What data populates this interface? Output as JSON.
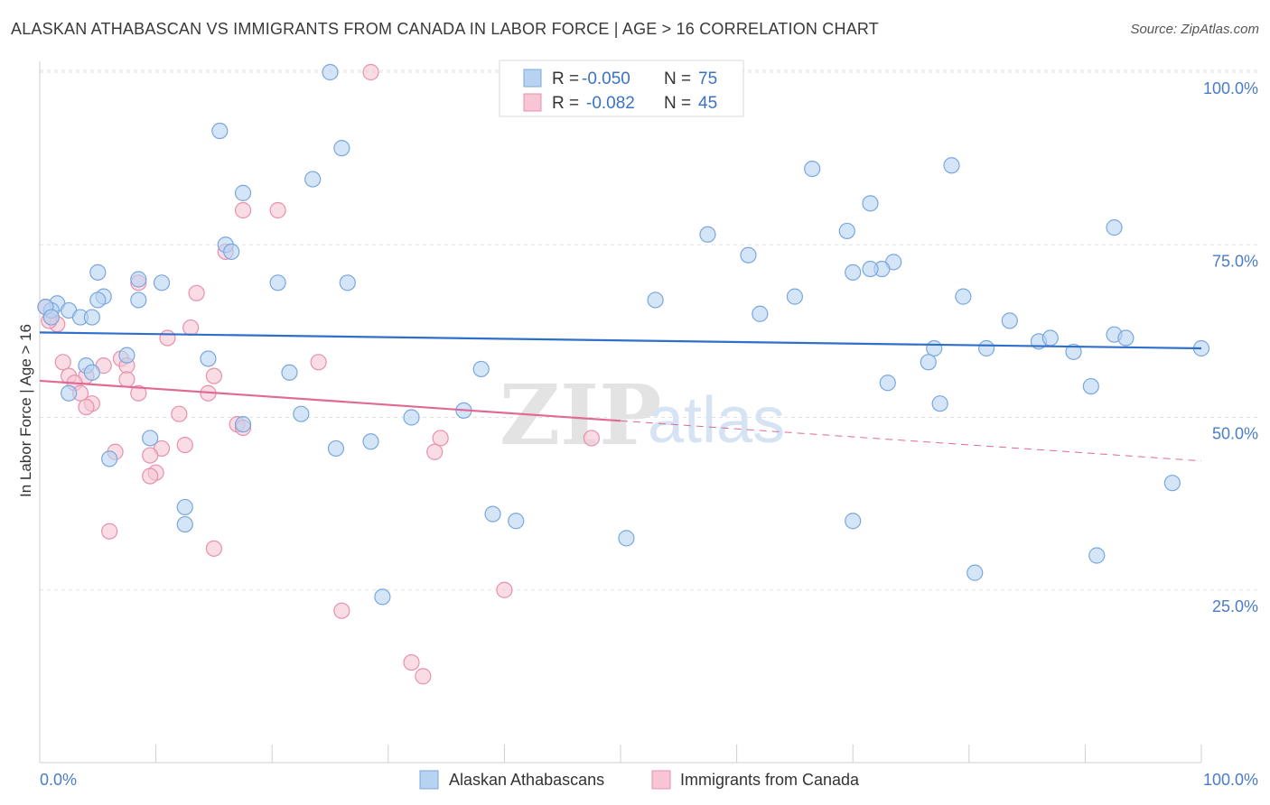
{
  "title": "ALASKAN ATHABASCAN VS IMMIGRANTS FROM CANADA IN LABOR FORCE | AGE > 16 CORRELATION CHART",
  "source": "Source: ZipAtlas.com",
  "watermark": {
    "zip": "ZIP",
    "atlas": "atlas"
  },
  "colors": {
    "blue_fill": "#b8d3f2",
    "blue_stroke": "#7aa7dd",
    "blue_line": "#2f6fcc",
    "pink_fill": "#f7c5d4",
    "pink_stroke": "#e791ac",
    "pink_line": "#e06a93",
    "grid": "#e2e2e2",
    "axis_label": "#4a7cc7"
  },
  "legend": {
    "rows": [
      {
        "r_label": "R =",
        "r_value": "-0.050",
        "n_label": "N =",
        "n_value": "75"
      },
      {
        "r_label": "R =",
        "r_value": "-0.082",
        "n_label": "N =",
        "n_value": "45"
      }
    ]
  },
  "chart_data": {
    "type": "scatter",
    "title": "ALASKAN ATHABASCAN VS IMMIGRANTS FROM CANADA IN LABOR FORCE | AGE > 16 CORRELATION CHART",
    "xlabel": "",
    "ylabel": "In Labor Force | Age > 16",
    "xlim": [
      0,
      100
    ],
    "ylim": [
      0,
      103
    ],
    "x_tick_labels": [
      "0.0%",
      "100.0%"
    ],
    "y_ticks": [
      25,
      50,
      75,
      100
    ],
    "y_tick_labels": [
      "25.0%",
      "50.0%",
      "75.0%",
      "100.0%"
    ],
    "grid": true,
    "legend_position": "top-center",
    "series": [
      {
        "name": "Alaskan Athabascans",
        "color": "#b8d3f2",
        "points": [
          [
            25.0,
            100.0
          ],
          [
            15.5,
            91.5
          ],
          [
            26.0,
            89.0
          ],
          [
            23.5,
            84.5
          ],
          [
            17.5,
            82.5
          ],
          [
            66.5,
            86.0
          ],
          [
            78.5,
            86.5
          ],
          [
            71.5,
            81.0
          ],
          [
            92.5,
            77.5
          ],
          [
            57.5,
            76.5
          ],
          [
            69.5,
            77.0
          ],
          [
            16.0,
            75.0
          ],
          [
            16.5,
            74.0
          ],
          [
            61.0,
            73.5
          ],
          [
            73.5,
            72.5
          ],
          [
            72.5,
            71.5
          ],
          [
            71.5,
            71.5
          ],
          [
            70.0,
            71.0
          ],
          [
            5.0,
            71.0
          ],
          [
            8.5,
            70.0
          ],
          [
            10.5,
            69.5
          ],
          [
            20.5,
            69.5
          ],
          [
            26.5,
            69.5
          ],
          [
            5.5,
            67.5
          ],
          [
            5.0,
            67.0
          ],
          [
            8.5,
            67.0
          ],
          [
            53.0,
            67.0
          ],
          [
            65.0,
            67.5
          ],
          [
            79.5,
            67.5
          ],
          [
            1.5,
            66.5
          ],
          [
            2.5,
            65.5
          ],
          [
            1.0,
            65.5
          ],
          [
            3.5,
            64.5
          ],
          [
            4.5,
            64.5
          ],
          [
            62.0,
            65.0
          ],
          [
            83.5,
            64.0
          ],
          [
            86.0,
            61.0
          ],
          [
            87.0,
            61.5
          ],
          [
            92.5,
            62.0
          ],
          [
            93.5,
            61.5
          ],
          [
            77.0,
            60.0
          ],
          [
            81.5,
            60.0
          ],
          [
            89.0,
            59.5
          ],
          [
            100.0,
            60.0
          ],
          [
            7.5,
            59.0
          ],
          [
            14.5,
            58.5
          ],
          [
            76.5,
            58.0
          ],
          [
            4.0,
            57.5
          ],
          [
            4.5,
            56.5
          ],
          [
            21.5,
            56.5
          ],
          [
            38.0,
            57.0
          ],
          [
            73.0,
            55.0
          ],
          [
            90.5,
            54.5
          ],
          [
            2.5,
            53.5
          ],
          [
            77.5,
            52.0
          ],
          [
            22.5,
            50.5
          ],
          [
            36.5,
            51.0
          ],
          [
            32.0,
            50.0
          ],
          [
            17.5,
            49.0
          ],
          [
            9.5,
            47.0
          ],
          [
            28.5,
            46.5
          ],
          [
            25.5,
            45.5
          ],
          [
            6.0,
            44.0
          ],
          [
            12.5,
            37.0
          ],
          [
            39.0,
            36.0
          ],
          [
            41.0,
            35.0
          ],
          [
            12.5,
            34.5
          ],
          [
            70.0,
            35.0
          ],
          [
            50.5,
            32.5
          ],
          [
            91.0,
            30.0
          ],
          [
            97.5,
            40.5
          ],
          [
            80.5,
            27.5
          ],
          [
            29.5,
            24.0
          ],
          [
            0.5,
            66.0
          ],
          [
            1.0,
            64.5
          ]
        ]
      },
      {
        "name": "Immigrants from Canada",
        "color": "#f7c5d4",
        "points": [
          [
            28.5,
            100.0
          ],
          [
            17.5,
            80.0
          ],
          [
            20.5,
            80.0
          ],
          [
            16.0,
            74.0
          ],
          [
            8.5,
            69.5
          ],
          [
            13.5,
            68.0
          ],
          [
            0.5,
            66.0
          ],
          [
            1.0,
            64.5
          ],
          [
            1.5,
            63.5
          ],
          [
            13.0,
            63.0
          ],
          [
            11.0,
            61.5
          ],
          [
            7.0,
            58.5
          ],
          [
            2.0,
            58.0
          ],
          [
            5.5,
            57.5
          ],
          [
            7.5,
            57.5
          ],
          [
            24.0,
            58.0
          ],
          [
            2.5,
            56.0
          ],
          [
            4.0,
            56.0
          ],
          [
            15.0,
            56.0
          ],
          [
            3.0,
            55.0
          ],
          [
            7.5,
            55.5
          ],
          [
            8.5,
            53.5
          ],
          [
            14.5,
            53.5
          ],
          [
            3.5,
            53.5
          ],
          [
            4.5,
            52.0
          ],
          [
            4.0,
            51.5
          ],
          [
            12.0,
            50.5
          ],
          [
            17.0,
            49.0
          ],
          [
            17.5,
            48.5
          ],
          [
            34.5,
            47.0
          ],
          [
            47.5,
            47.0
          ],
          [
            12.5,
            46.0
          ],
          [
            10.5,
            45.5
          ],
          [
            34.0,
            45.0
          ],
          [
            6.5,
            45.0
          ],
          [
            9.5,
            44.5
          ],
          [
            10.0,
            42.0
          ],
          [
            9.5,
            41.5
          ],
          [
            6.0,
            33.5
          ],
          [
            15.0,
            31.0
          ],
          [
            40.0,
            25.0
          ],
          [
            26.0,
            22.0
          ],
          [
            32.0,
            14.5
          ],
          [
            33.0,
            12.5
          ],
          [
            0.8,
            64.0
          ]
        ]
      }
    ],
    "trend_lines": [
      {
        "series": "Alaskan Athabascans",
        "x": [
          0,
          100
        ],
        "y": [
          62.3,
          60.0
        ],
        "style": "solid"
      },
      {
        "series": "Immigrants from Canada",
        "x": [
          0,
          50
        ],
        "y": [
          55.3,
          49.5
        ],
        "style": "solid"
      },
      {
        "series": "Immigrants from Canada",
        "x": [
          50,
          100
        ],
        "y": [
          49.5,
          43.7
        ],
        "style": "dashed"
      }
    ]
  },
  "bottom_legend": {
    "items": [
      "Alaskan Athabascans",
      "Immigrants from Canada"
    ]
  }
}
